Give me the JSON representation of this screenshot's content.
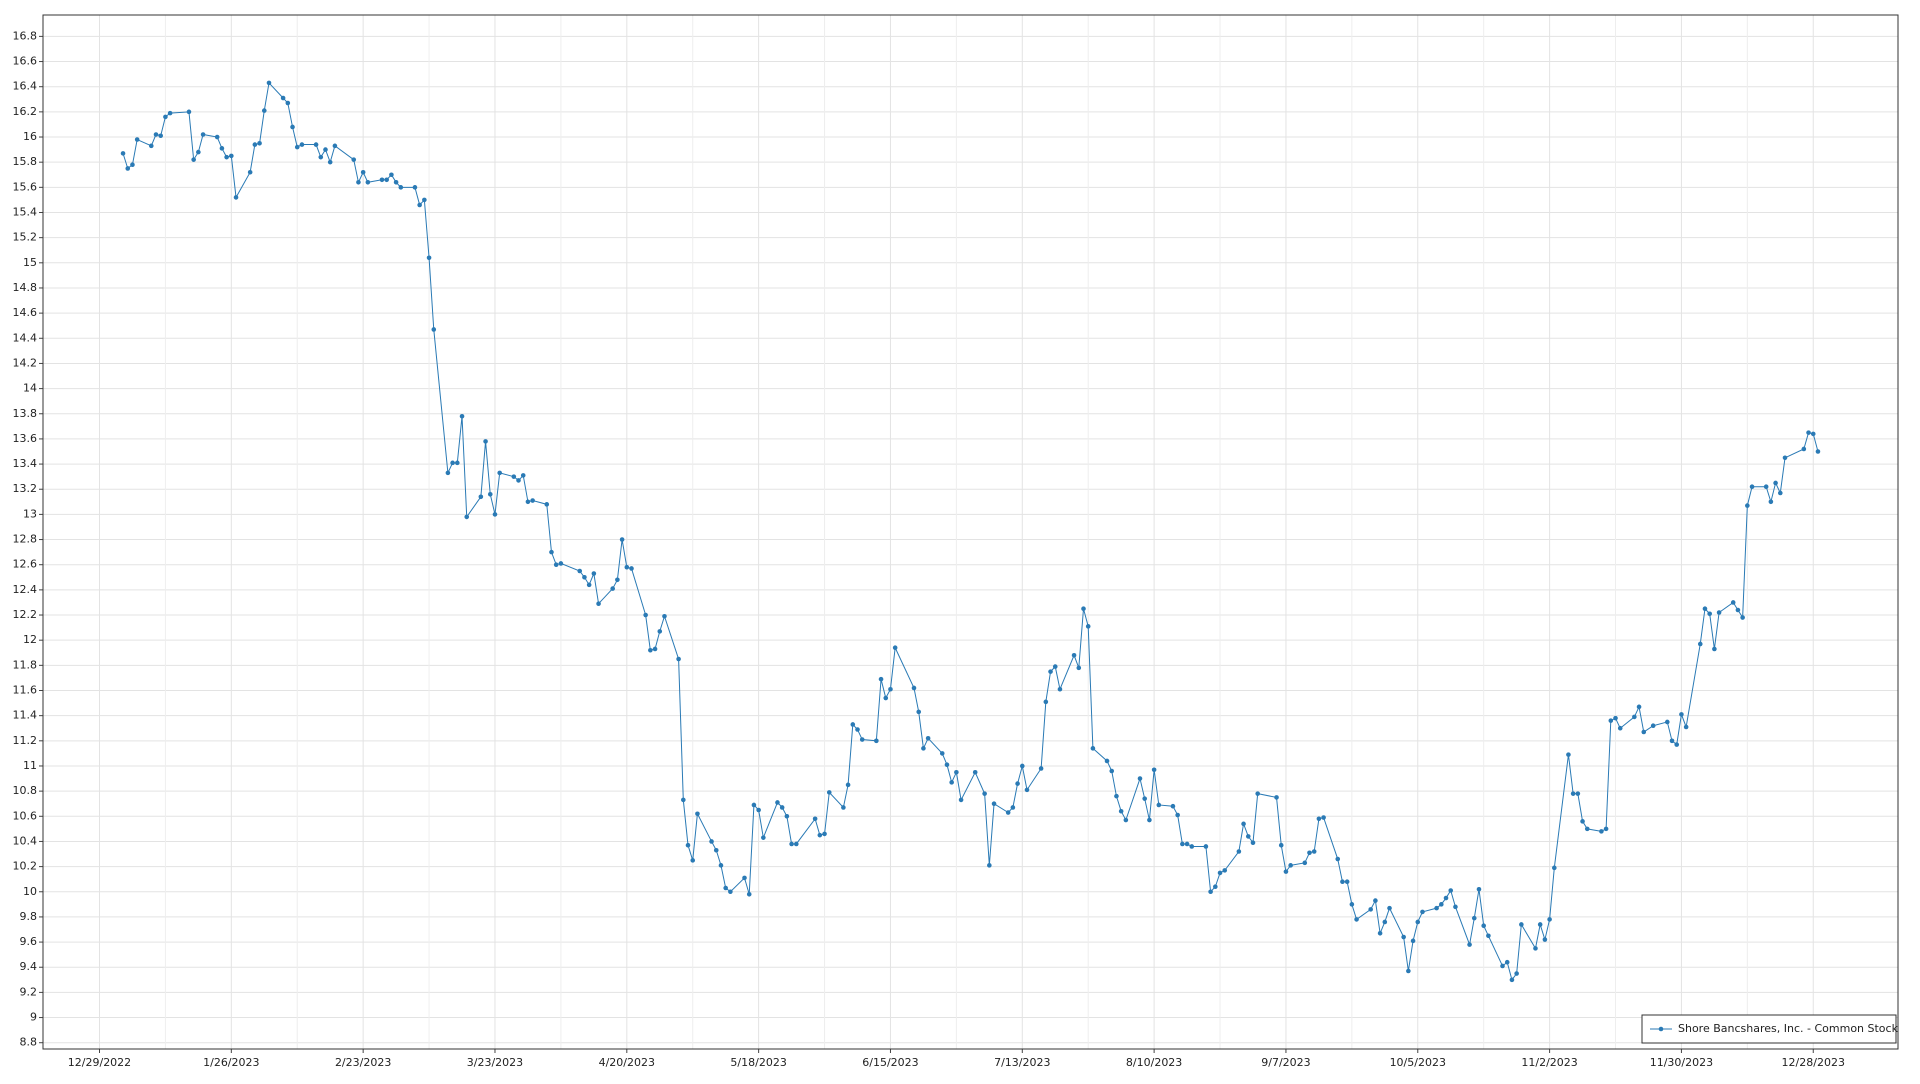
{
  "chart_data": {
    "type": "line",
    "x": [
      "1/3/2023",
      "1/4/2023",
      "1/5/2023",
      "1/6/2023",
      "1/9/2023",
      "1/10/2023",
      "1/11/2023",
      "1/12/2023",
      "1/13/2023",
      "1/17/2023",
      "1/18/2023",
      "1/19/2023",
      "1/20/2023",
      "1/23/2023",
      "1/24/2023",
      "1/25/2023",
      "1/26/2023",
      "1/27/2023",
      "1/30/2023",
      "1/31/2023",
      "2/1/2023",
      "2/2/2023",
      "2/3/2023",
      "2/6/2023",
      "2/7/2023",
      "2/8/2023",
      "2/9/2023",
      "2/10/2023",
      "2/13/2023",
      "2/14/2023",
      "2/15/2023",
      "2/16/2023",
      "2/17/2023",
      "2/21/2023",
      "2/22/2023",
      "2/23/2023",
      "2/24/2023",
      "2/27/2023",
      "2/28/2023",
      "3/1/2023",
      "3/2/2023",
      "3/3/2023",
      "3/6/2023",
      "3/7/2023",
      "3/8/2023",
      "3/9/2023",
      "3/10/2023",
      "3/13/2023",
      "3/14/2023",
      "3/15/2023",
      "3/16/2023",
      "3/17/2023",
      "3/20/2023",
      "3/21/2023",
      "3/22/2023",
      "3/23/2023",
      "3/24/2023",
      "3/27/2023",
      "3/28/2023",
      "3/29/2023",
      "3/30/2023",
      "3/31/2023",
      "4/3/2023",
      "4/4/2023",
      "4/5/2023",
      "4/6/2023",
      "4/10/2023",
      "4/11/2023",
      "4/12/2023",
      "4/13/2023",
      "4/14/2023",
      "4/17/2023",
      "4/18/2023",
      "4/19/2023",
      "4/20/2023",
      "4/21/2023",
      "4/24/2023",
      "4/25/2023",
      "4/26/2023",
      "4/27/2023",
      "4/28/2023",
      "5/1/2023",
      "5/2/2023",
      "5/3/2023",
      "5/4/2023",
      "5/5/2023",
      "5/8/2023",
      "5/9/2023",
      "5/10/2023",
      "5/11/2023",
      "5/12/2023",
      "5/15/2023",
      "5/16/2023",
      "5/17/2023",
      "5/18/2023",
      "5/19/2023",
      "5/22/2023",
      "5/23/2023",
      "5/24/2023",
      "5/25/2023",
      "5/26/2023",
      "5/30/2023",
      "5/31/2023",
      "6/1/2023",
      "6/2/2023",
      "6/5/2023",
      "6/6/2023",
      "6/7/2023",
      "6/8/2023",
      "6/9/2023",
      "6/12/2023",
      "6/13/2023",
      "6/14/2023",
      "6/15/2023",
      "6/16/2023",
      "6/20/2023",
      "6/21/2023",
      "6/22/2023",
      "6/23/2023",
      "6/26/2023",
      "6/27/2023",
      "6/28/2023",
      "6/29/2023",
      "6/30/2023",
      "7/3/2023",
      "7/5/2023",
      "7/6/2023",
      "7/7/2023",
      "7/10/2023",
      "7/11/2023",
      "7/12/2023",
      "7/13/2023",
      "7/14/2023",
      "7/17/2023",
      "7/18/2023",
      "7/19/2023",
      "7/20/2023",
      "7/21/2023",
      "7/24/2023",
      "7/25/2023",
      "7/26/2023",
      "7/27/2023",
      "7/28/2023",
      "7/31/2023",
      "8/1/2023",
      "8/2/2023",
      "8/3/2023",
      "8/4/2023",
      "8/7/2023",
      "8/8/2023",
      "8/9/2023",
      "8/10/2023",
      "8/11/2023",
      "8/14/2023",
      "8/15/2023",
      "8/16/2023",
      "8/17/2023",
      "8/18/2023",
      "8/21/2023",
      "8/22/2023",
      "8/23/2023",
      "8/24/2023",
      "8/25/2023",
      "8/28/2023",
      "8/29/2023",
      "8/30/2023",
      "8/31/2023",
      "9/1/2023",
      "9/5/2023",
      "9/6/2023",
      "9/7/2023",
      "9/8/2023",
      "9/11/2023",
      "9/12/2023",
      "9/13/2023",
      "9/14/2023",
      "9/15/2023",
      "9/18/2023",
      "9/19/2023",
      "9/20/2023",
      "9/21/2023",
      "9/22/2023",
      "9/25/2023",
      "9/26/2023",
      "9/27/2023",
      "9/28/2023",
      "9/29/2023",
      "10/2/2023",
      "10/3/2023",
      "10/4/2023",
      "10/5/2023",
      "10/6/2023",
      "10/9/2023",
      "10/10/2023",
      "10/11/2023",
      "10/12/2023",
      "10/13/2023",
      "10/16/2023",
      "10/17/2023",
      "10/18/2023",
      "10/19/2023",
      "10/20/2023",
      "10/23/2023",
      "10/24/2023",
      "10/25/2023",
      "10/26/2023",
      "10/27/2023",
      "10/30/2023",
      "10/31/2023",
      "11/1/2023",
      "11/2/2023",
      "11/3/2023",
      "11/6/2023",
      "11/7/2023",
      "11/8/2023",
      "11/9/2023",
      "11/10/2023",
      "11/13/2023",
      "11/14/2023",
      "11/15/2023",
      "11/16/2023",
      "11/17/2023",
      "11/20/2023",
      "11/21/2023",
      "11/22/2023",
      "11/24/2023",
      "11/27/2023",
      "11/28/2023",
      "11/29/2023",
      "11/30/2023",
      "12/1/2023",
      "12/4/2023",
      "12/5/2023",
      "12/6/2023",
      "12/7/2023",
      "12/8/2023",
      "12/11/2023",
      "12/12/2023",
      "12/13/2023",
      "12/14/2023",
      "12/15/2023",
      "12/18/2023",
      "12/19/2023",
      "12/20/2023",
      "12/21/2023",
      "12/22/2023",
      "12/26/2023",
      "12/27/2023",
      "12/28/2023",
      "12/29/2023"
    ],
    "series": [
      {
        "name": "Shore Bancshares, Inc. - Common Stock",
        "color": "#2a7ab5",
        "values": [
          15.87,
          15.75,
          15.78,
          15.98,
          15.93,
          16.02,
          16.01,
          16.16,
          16.19,
          16.2,
          15.82,
          15.88,
          16.02,
          16.0,
          15.91,
          15.84,
          15.85,
          15.52,
          15.72,
          15.94,
          15.95,
          16.21,
          16.43,
          16.31,
          16.27,
          16.08,
          15.92,
          15.94,
          15.94,
          15.84,
          15.9,
          15.8,
          15.93,
          15.82,
          15.64,
          15.72,
          15.64,
          15.66,
          15.66,
          15.7,
          15.64,
          15.6,
          15.6,
          15.46,
          15.5,
          15.04,
          14.47,
          13.33,
          13.41,
          13.41,
          13.78,
          12.98,
          13.14,
          13.58,
          13.16,
          13.0,
          13.33,
          13.3,
          13.27,
          13.31,
          13.1,
          13.11,
          13.08,
          12.7,
          12.6,
          12.61,
          12.55,
          12.5,
          12.44,
          12.53,
          12.29,
          12.41,
          12.48,
          12.8,
          12.58,
          12.57,
          12.2,
          11.92,
          11.93,
          12.07,
          12.19,
          11.85,
          10.73,
          10.37,
          10.25,
          10.62,
          10.4,
          10.33,
          10.21,
          10.03,
          10.0,
          10.11,
          9.98,
          10.69,
          10.65,
          10.43,
          10.71,
          10.67,
          10.6,
          10.38,
          10.38,
          10.58,
          10.45,
          10.46,
          10.79,
          10.67,
          10.85,
          11.33,
          11.29,
          11.21,
          11.2,
          11.69,
          11.54,
          11.61,
          11.94,
          11.62,
          11.43,
          11.14,
          11.22,
          11.1,
          11.01,
          10.87,
          10.95,
          10.73,
          10.95,
          10.78,
          10.21,
          10.7,
          10.63,
          10.67,
          10.86,
          11.0,
          10.81,
          10.98,
          11.51,
          11.75,
          11.79,
          11.61,
          11.88,
          11.78,
          12.25,
          12.11,
          11.14,
          11.04,
          10.96,
          10.76,
          10.64,
          10.57,
          10.9,
          10.74,
          10.57,
          10.97,
          10.69,
          10.68,
          10.61,
          10.38,
          10.38,
          10.36,
          10.36,
          10.0,
          10.04,
          10.15,
          10.17,
          10.32,
          10.54,
          10.44,
          10.39,
          10.78,
          10.75,
          10.37,
          10.16,
          10.21,
          10.23,
          10.31,
          10.32,
          10.58,
          10.59,
          10.26,
          10.08,
          10.08,
          9.9,
          9.78,
          9.86,
          9.93,
          9.67,
          9.76,
          9.87,
          9.64,
          9.37,
          9.61,
          9.76,
          9.84,
          9.87,
          9.9,
          9.95,
          10.01,
          9.88,
          9.58,
          9.79,
          10.02,
          9.73,
          9.65,
          9.41,
          9.44,
          9.3,
          9.35,
          9.74,
          9.55,
          9.74,
          9.62,
          9.78,
          10.19,
          11.09,
          10.78,
          10.78,
          10.56,
          10.5,
          10.48,
          10.5,
          11.36,
          11.38,
          11.3,
          11.39,
          11.47,
          11.27,
          11.32,
          11.35,
          11.2,
          11.17,
          11.41,
          11.31,
          11.97,
          12.25,
          12.21,
          11.93,
          12.22,
          12.3,
          12.24,
          12.18,
          13.07,
          13.22,
          13.22,
          13.1,
          13.25,
          13.17,
          13.45,
          13.52,
          13.65,
          13.64,
          13.5
        ]
      }
    ],
    "xlim": [
      "12/17/2022",
      "1/15/2024"
    ],
    "xticks": [
      "12/29/2022",
      "1/26/2023",
      "2/23/2023",
      "3/23/2023",
      "4/20/2023",
      "5/18/2023",
      "6/15/2023",
      "7/13/2023",
      "8/10/2023",
      "9/7/2023",
      "10/5/2023",
      "11/2/2023",
      "11/30/2023",
      "12/28/2023"
    ],
    "ylim": [
      8.75,
      16.97
    ],
    "yticks": [
      8.8,
      9,
      9.2,
      9.4,
      9.6,
      9.8,
      10,
      10.2,
      10.4,
      10.6,
      10.8,
      11,
      11.2,
      11.4,
      11.6,
      11.8,
      12,
      12.2,
      12.4,
      12.6,
      12.8,
      13,
      13.2,
      13.4,
      13.6,
      13.8,
      14,
      14.2,
      14.4,
      14.6,
      14.8,
      15,
      15.2,
      15.4,
      15.6,
      15.8,
      16,
      16.2,
      16.4,
      16.6,
      16.8
    ],
    "grid": true,
    "legend": "lower right"
  }
}
